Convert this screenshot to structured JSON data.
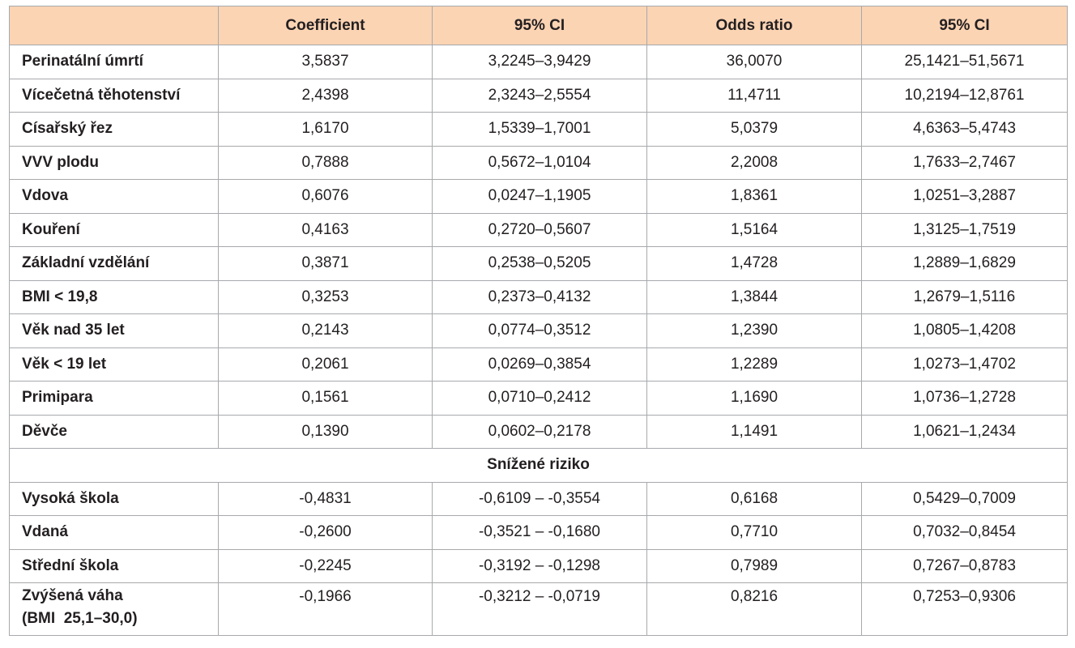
{
  "table": {
    "headers": [
      "",
      "Coefficient",
      "95% CI",
      "Odds ratio",
      "95% CI"
    ],
    "rows": [
      [
        "Perinatální úmrtí",
        "3,5837",
        "3,2245–3,9429",
        "36,0070",
        "25,1421–51,5671"
      ],
      [
        "Vícečetná těhotenství",
        "2,4398",
        "2,3243–2,5554",
        "11,4711",
        "10,2194–12,8761"
      ],
      [
        "Císařský řez",
        "1,6170",
        "1,5339–1,7001",
        "5,0379",
        "4,6363–5,4743"
      ],
      [
        "VVV plodu",
        "0,7888",
        "0,5672–1,0104",
        "2,2008",
        "1,7633–2,7467"
      ],
      [
        "Vdova",
        "0,6076",
        "0,0247–1,1905",
        "1,8361",
        "1,0251–3,2887"
      ],
      [
        "Kouření",
        "0,4163",
        "0,2720–0,5607",
        "1,5164",
        "1,3125–1,7519"
      ],
      [
        "Základní vzdělání",
        "0,3871",
        "0,2538–0,5205",
        "1,4728",
        "1,2889–1,6829"
      ],
      [
        "BMI < 19,8",
        "0,3253",
        "0,2373–0,4132",
        "1,3844",
        "1,2679–1,5116"
      ],
      [
        "Věk nad 35 let",
        "0,2143",
        "0,0774–0,3512",
        "1,2390",
        "1,0805–1,4208"
      ],
      [
        "Věk < 19 let",
        "0,2061",
        "0,0269–0,3854",
        "1,2289",
        "1,0273–1,4702"
      ],
      [
        "Primipara",
        "0,1561",
        "0,0710–0,2412",
        "1,1690",
        "1,0736–1,2728"
      ],
      [
        "Děvče",
        "0,1390",
        "0,0602–0,2178",
        "1,1491",
        "1,0621–1,2434"
      ]
    ],
    "section_label": "Snížené riziko",
    "rows_reduced": [
      [
        "Vysoká škola",
        "-0,4831",
        "-0,6109 – -0,3554",
        "0,6168",
        "0,5429–0,7009"
      ],
      [
        "Vdaná",
        "-0,2600",
        "-0,3521 – -0,1680",
        "0,7710",
        "0,7032–0,8454"
      ],
      [
        "Střední škola",
        "-0,2245",
        "-0,3192 – -0,1298",
        "0,7989",
        "0,7267–0,8783"
      ]
    ],
    "last_row": {
      "label_line1": "Zvýšená váha",
      "label_line2": "(BMI  25,1–30,0)",
      "values": [
        "-0,1966",
        "-0,3212 – -0,0719",
        "0,8216",
        "0,7253–0,9306"
      ]
    }
  },
  "colors": {
    "header_bg": "#fbd4b4",
    "border": "#a7a9ac",
    "text": "#231f20"
  }
}
